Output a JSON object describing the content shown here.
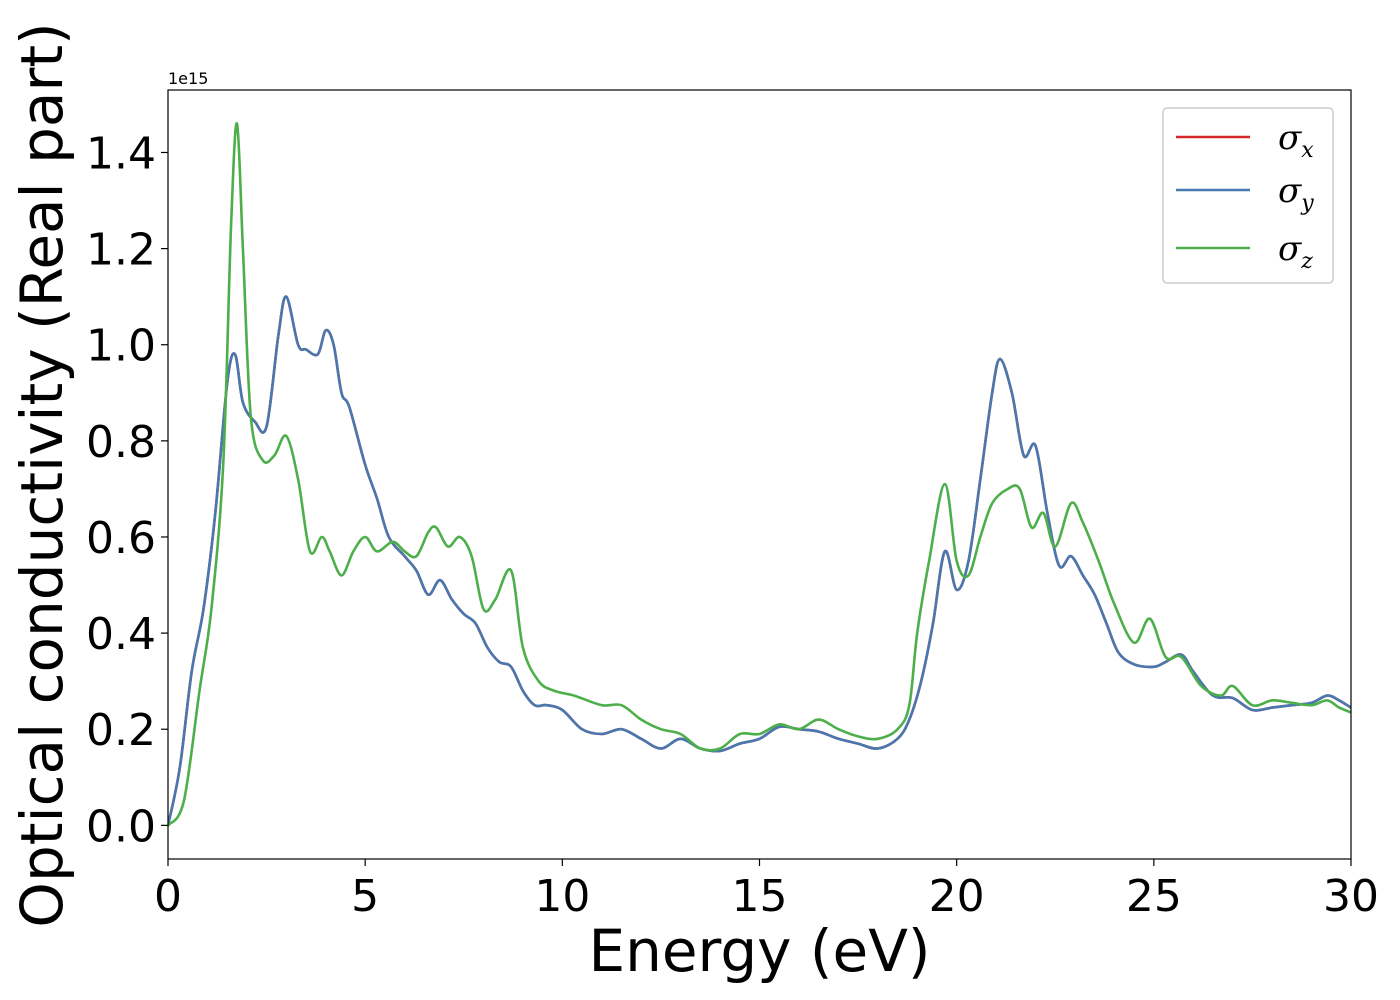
{
  "chart_data": {
    "type": "line",
    "xlabel": "Energy (eV)",
    "ylabel": "Optical conductivity (Real part)",
    "y_offset_text": "1e15",
    "xlim": [
      0,
      30
    ],
    "ylim": [
      -0.07,
      1.53
    ],
    "x_ticks": [
      0,
      5,
      10,
      15,
      20,
      25,
      30
    ],
    "x_tick_labels": [
      "0",
      "5",
      "10",
      "15",
      "20",
      "25",
      "30"
    ],
    "y_ticks": [
      0.0,
      0.2,
      0.4,
      0.6,
      0.8,
      1.0,
      1.2,
      1.4
    ],
    "y_tick_labels": [
      "0.0",
      "0.2",
      "0.4",
      "0.6",
      "0.8",
      "1.0",
      "1.2",
      "1.4"
    ],
    "legend_position": "top-right",
    "grid": false,
    "series": [
      {
        "name": "σx",
        "legend_symbol": "σ",
        "legend_subscript": "x",
        "color": "#d62728",
        "x": [
          0,
          0.3,
          0.6,
          0.9,
          1.2,
          1.5,
          1.7,
          1.9,
          2.2,
          2.5,
          2.8,
          3.0,
          3.3,
          3.5,
          3.8,
          4.0,
          4.2,
          4.4,
          4.6,
          5.0,
          5.3,
          5.6,
          6.0,
          6.3,
          6.6,
          6.9,
          7.2,
          7.5,
          7.8,
          8.1,
          8.4,
          8.7,
          9.0,
          9.3,
          9.6,
          10.0,
          10.5,
          11.0,
          11.5,
          12.0,
          12.5,
          13.0,
          13.5,
          14.0,
          14.5,
          15.0,
          15.5,
          16.0,
          16.5,
          17.0,
          17.5,
          18.0,
          18.5,
          18.8,
          19.1,
          19.4,
          19.7,
          20.0,
          20.3,
          20.6,
          20.9,
          21.1,
          21.4,
          21.7,
          22.0,
          22.3,
          22.6,
          22.9,
          23.2,
          23.5,
          23.8,
          24.1,
          24.5,
          25.0,
          25.3,
          25.7,
          26.0,
          26.5,
          27.0,
          27.5,
          28.0,
          28.5,
          29.0,
          29.4,
          29.7,
          30.0
        ],
        "values": [
          0.0,
          0.12,
          0.32,
          0.45,
          0.65,
          0.92,
          0.98,
          0.88,
          0.84,
          0.83,
          1.02,
          1.1,
          1.0,
          0.99,
          0.98,
          1.03,
          1.0,
          0.9,
          0.87,
          0.75,
          0.68,
          0.6,
          0.56,
          0.53,
          0.48,
          0.51,
          0.47,
          0.44,
          0.42,
          0.37,
          0.34,
          0.33,
          0.28,
          0.25,
          0.25,
          0.24,
          0.2,
          0.19,
          0.2,
          0.18,
          0.16,
          0.18,
          0.16,
          0.155,
          0.17,
          0.18,
          0.205,
          0.2,
          0.195,
          0.18,
          0.17,
          0.16,
          0.18,
          0.22,
          0.3,
          0.42,
          0.57,
          0.49,
          0.55,
          0.72,
          0.9,
          0.97,
          0.9,
          0.77,
          0.79,
          0.65,
          0.54,
          0.56,
          0.52,
          0.48,
          0.42,
          0.36,
          0.335,
          0.33,
          0.34,
          0.355,
          0.32,
          0.27,
          0.265,
          0.24,
          0.245,
          0.25,
          0.255,
          0.27,
          0.26,
          0.245
        ]
      },
      {
        "name": "σy",
        "legend_symbol": "σ",
        "legend_subscript": "y",
        "color": "#4878b0",
        "x": [
          0,
          0.3,
          0.6,
          0.9,
          1.2,
          1.5,
          1.7,
          1.9,
          2.2,
          2.5,
          2.8,
          3.0,
          3.3,
          3.5,
          3.8,
          4.0,
          4.2,
          4.4,
          4.6,
          5.0,
          5.3,
          5.6,
          6.0,
          6.3,
          6.6,
          6.9,
          7.2,
          7.5,
          7.8,
          8.1,
          8.4,
          8.7,
          9.0,
          9.3,
          9.6,
          10.0,
          10.5,
          11.0,
          11.5,
          12.0,
          12.5,
          13.0,
          13.5,
          14.0,
          14.5,
          15.0,
          15.5,
          16.0,
          16.5,
          17.0,
          17.5,
          18.0,
          18.5,
          18.8,
          19.1,
          19.4,
          19.7,
          20.0,
          20.3,
          20.6,
          20.9,
          21.1,
          21.4,
          21.7,
          22.0,
          22.3,
          22.6,
          22.9,
          23.2,
          23.5,
          23.8,
          24.1,
          24.5,
          25.0,
          25.3,
          25.7,
          26.0,
          26.5,
          27.0,
          27.5,
          28.0,
          28.5,
          29.0,
          29.4,
          29.7,
          30.0
        ],
        "values": [
          0.0,
          0.12,
          0.32,
          0.45,
          0.65,
          0.92,
          0.98,
          0.88,
          0.84,
          0.83,
          1.02,
          1.1,
          1.0,
          0.99,
          0.98,
          1.03,
          1.0,
          0.9,
          0.87,
          0.75,
          0.68,
          0.6,
          0.56,
          0.53,
          0.48,
          0.51,
          0.47,
          0.44,
          0.42,
          0.37,
          0.34,
          0.33,
          0.28,
          0.25,
          0.25,
          0.24,
          0.2,
          0.19,
          0.2,
          0.18,
          0.16,
          0.18,
          0.16,
          0.155,
          0.17,
          0.18,
          0.205,
          0.2,
          0.195,
          0.18,
          0.17,
          0.16,
          0.18,
          0.22,
          0.3,
          0.42,
          0.57,
          0.49,
          0.55,
          0.72,
          0.9,
          0.97,
          0.9,
          0.77,
          0.79,
          0.65,
          0.54,
          0.56,
          0.52,
          0.48,
          0.42,
          0.36,
          0.335,
          0.33,
          0.34,
          0.355,
          0.32,
          0.27,
          0.265,
          0.24,
          0.245,
          0.25,
          0.255,
          0.27,
          0.26,
          0.245
        ]
      },
      {
        "name": "σz",
        "legend_symbol": "σ",
        "legend_subscript": "z",
        "color": "#4daf4a",
        "x": [
          0,
          0.4,
          0.8,
          1.1,
          1.4,
          1.6,
          1.75,
          1.9,
          2.1,
          2.4,
          2.7,
          3.0,
          3.3,
          3.6,
          3.9,
          4.1,
          4.4,
          4.7,
          5.0,
          5.3,
          5.7,
          6.0,
          6.3,
          6.6,
          6.8,
          7.1,
          7.4,
          7.7,
          8.0,
          8.3,
          8.7,
          9.0,
          9.4,
          9.8,
          10.3,
          11.0,
          11.5,
          12.0,
          12.5,
          13.0,
          13.5,
          14.0,
          14.5,
          15.0,
          15.5,
          16.0,
          16.5,
          17.0,
          17.5,
          18.0,
          18.5,
          18.8,
          19.0,
          19.3,
          19.7,
          20.0,
          20.3,
          20.6,
          20.9,
          21.3,
          21.6,
          21.9,
          22.2,
          22.5,
          22.9,
          23.2,
          23.6,
          24.0,
          24.5,
          24.9,
          25.3,
          25.7,
          26.2,
          26.7,
          27.0,
          27.5,
          28.0,
          28.5,
          29.0,
          29.4,
          29.7,
          30.0
        ],
        "values": [
          0.0,
          0.05,
          0.28,
          0.45,
          0.75,
          1.25,
          1.46,
          1.2,
          0.85,
          0.76,
          0.77,
          0.81,
          0.72,
          0.57,
          0.6,
          0.57,
          0.52,
          0.57,
          0.6,
          0.57,
          0.59,
          0.57,
          0.56,
          0.61,
          0.62,
          0.58,
          0.6,
          0.56,
          0.45,
          0.47,
          0.53,
          0.37,
          0.3,
          0.28,
          0.27,
          0.25,
          0.25,
          0.22,
          0.2,
          0.19,
          0.16,
          0.16,
          0.19,
          0.19,
          0.21,
          0.2,
          0.22,
          0.2,
          0.185,
          0.18,
          0.2,
          0.25,
          0.4,
          0.55,
          0.71,
          0.55,
          0.52,
          0.6,
          0.67,
          0.7,
          0.7,
          0.62,
          0.65,
          0.58,
          0.67,
          0.63,
          0.55,
          0.46,
          0.38,
          0.43,
          0.35,
          0.35,
          0.29,
          0.27,
          0.29,
          0.25,
          0.26,
          0.255,
          0.25,
          0.26,
          0.245,
          0.235
        ]
      }
    ]
  }
}
